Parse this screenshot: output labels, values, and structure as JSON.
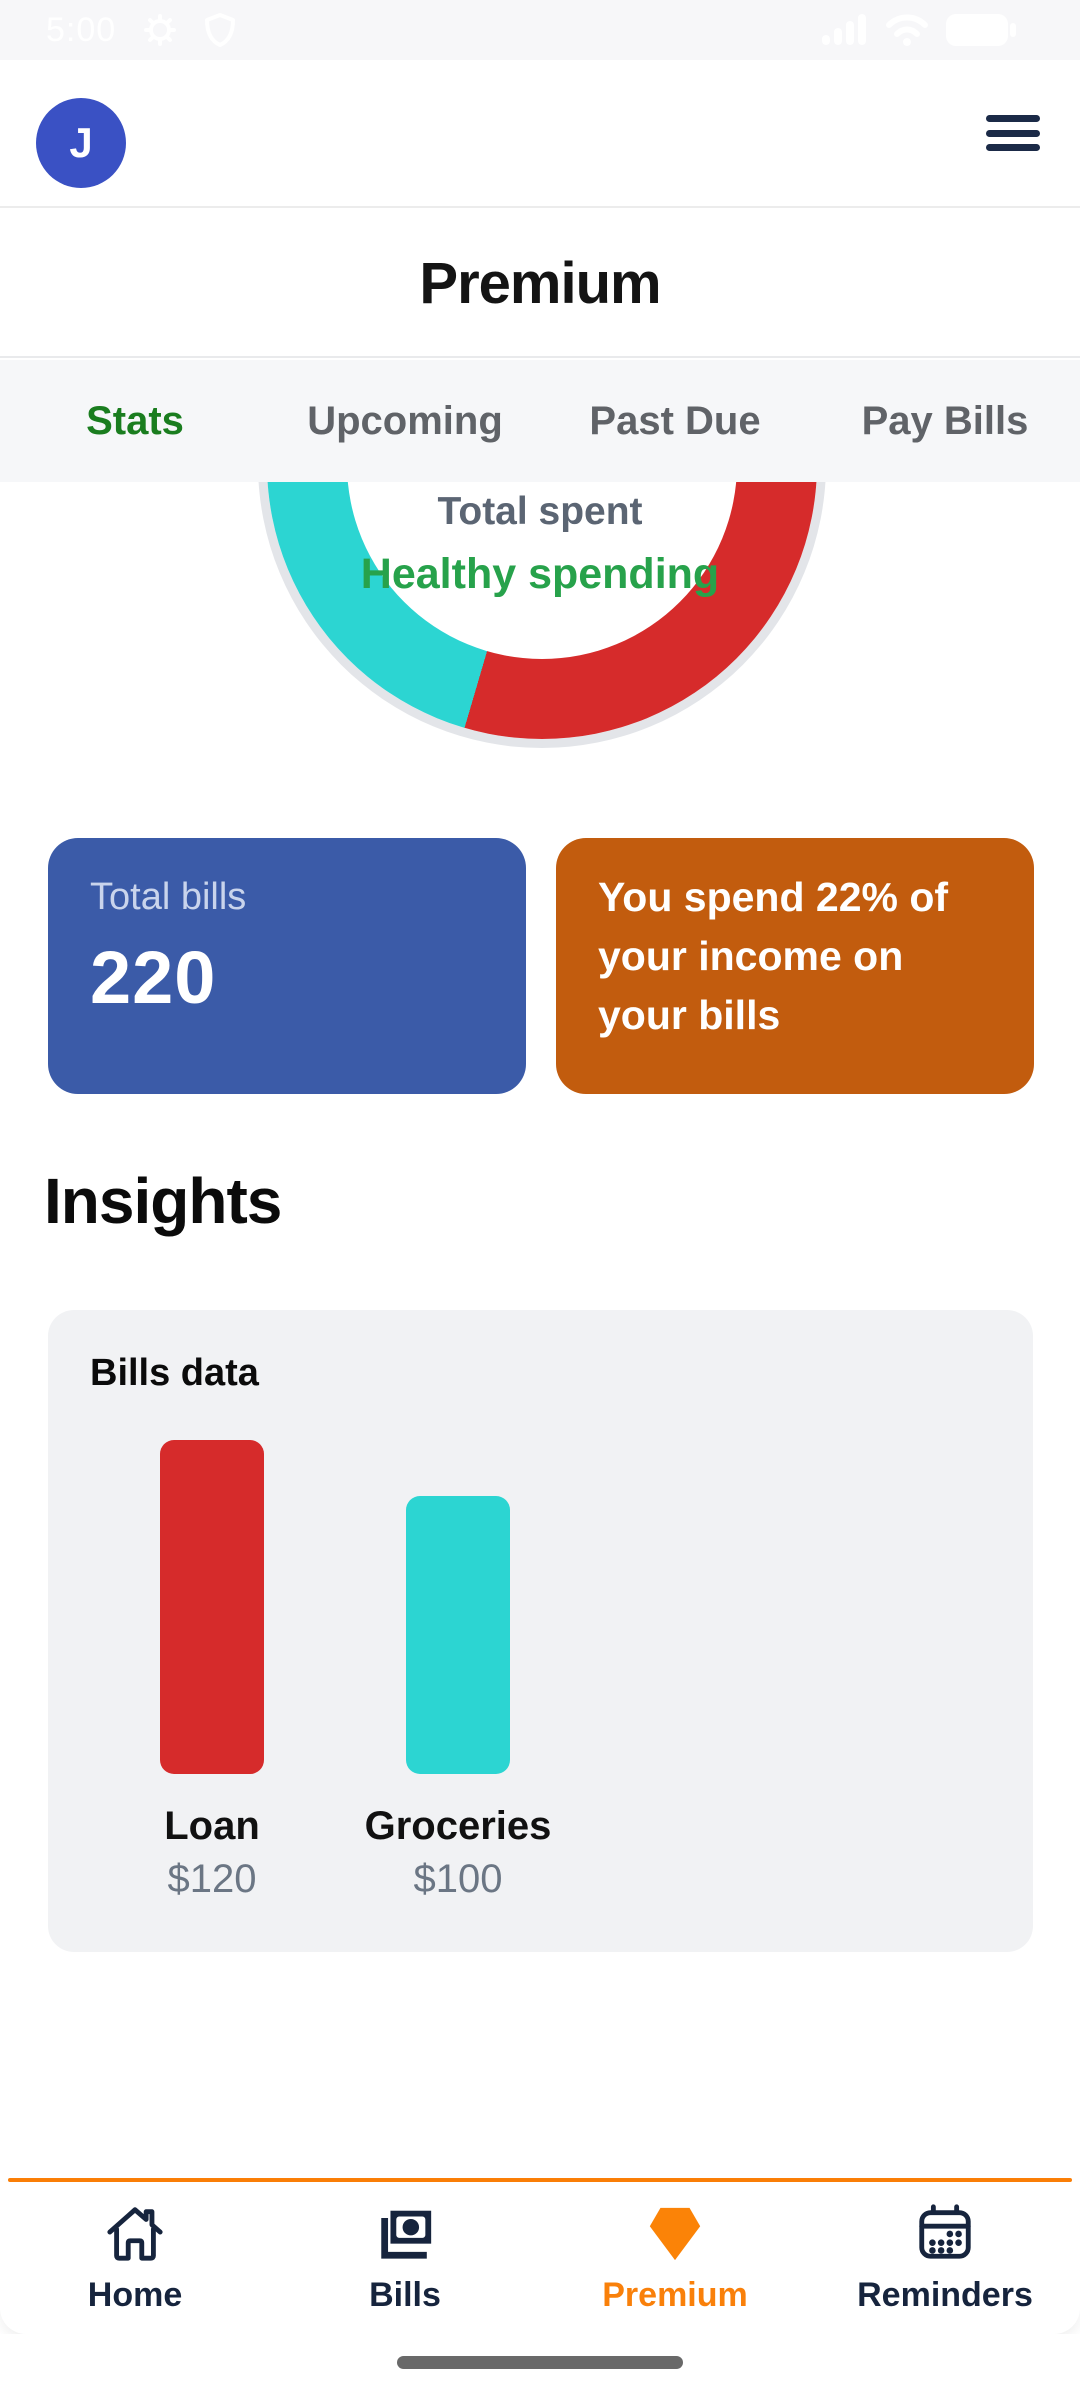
{
  "status_bar": {
    "time": "5:00",
    "left_icons": [
      "settings-gear",
      "privacy-shield"
    ],
    "right_icons": [
      "signal",
      "wifi",
      "battery"
    ]
  },
  "header": {
    "avatar_initial": "J"
  },
  "page": {
    "title": "Premium"
  },
  "tabs": [
    {
      "label": "Stats",
      "active": true
    },
    {
      "label": "Upcoming",
      "active": false
    },
    {
      "label": "Past Due",
      "active": false
    },
    {
      "label": "Pay Bills",
      "active": false
    }
  ],
  "summary": {
    "total_bills": {
      "label": "Total bills",
      "value": "220",
      "bg": "#3b5ba8"
    },
    "income_note": {
      "text": "You spend 22% of your income on your bills",
      "bg": "#c25c0e"
    }
  },
  "insights": {
    "heading": "Insights"
  },
  "chart_data": [
    {
      "type": "pie",
      "subtype": "donut (top half hidden behind tab bar)",
      "center_labels": {
        "line1": "Total spent",
        "line2": "Healthy spending"
      },
      "categories": [
        "Loan",
        "Groceries"
      ],
      "values": [
        120,
        100
      ],
      "colors": [
        "#d62b2b",
        "#2cd5d2"
      ],
      "status_color": "#27a24b",
      "legend": "none"
    },
    {
      "type": "bar",
      "title": "Bills data",
      "categories": [
        "Loan",
        "Groceries"
      ],
      "values": [
        120,
        100
      ],
      "display_values": [
        "$120",
        "$100"
      ],
      "colors": [
        "#d62b2b",
        "#2cd5d2"
      ],
      "ylim": [
        0,
        120
      ],
      "grid": false,
      "axis_labels": "none"
    }
  ],
  "bottom_nav": [
    {
      "label": "Home",
      "icon": "home-icon",
      "active": false
    },
    {
      "label": "Bills",
      "icon": "bills-icon",
      "active": false
    },
    {
      "label": "Premium",
      "icon": "gem-icon",
      "active": true
    },
    {
      "label": "Reminders",
      "icon": "calendar-icon",
      "active": false
    }
  ],
  "colors": {
    "accent_orange": "#f9800a",
    "nav_navy": "#16243d",
    "tab_active_green": "#1a7d1f",
    "healthy_green": "#27a24b",
    "card_blue": "#3b5ba8",
    "card_orange": "#c25c0e",
    "chart_red": "#d62b2b",
    "chart_teal": "#2cd5d2",
    "avatar_blue": "#3a51c4"
  }
}
